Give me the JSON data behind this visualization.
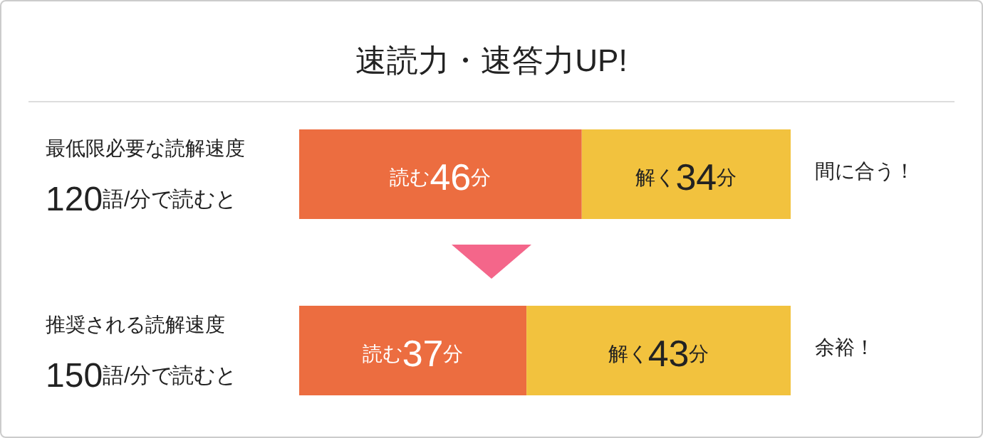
{
  "chart_data": {
    "type": "bar",
    "orientation": "horizontal",
    "stacked": true,
    "title": "速読力・速答力UP!",
    "categories": [
      "最低限必要な読解速度\n120語/分で読むと",
      "推奨される読解速度\n150語/分で読むと"
    ],
    "series": [
      {
        "color": "#ec6d40",
        "values": [
          46,
          37
        ],
        "value_labels": [
          "読む46分",
          "読む37分"
        ]
      },
      {
        "color": "#f2c23e",
        "values": [
          34,
          43
        ],
        "value_labels": [
          "解く34分",
          "解く43分"
        ]
      }
    ],
    "annotations": [
      "間に合う！",
      "余裕！"
    ]
  }
}
